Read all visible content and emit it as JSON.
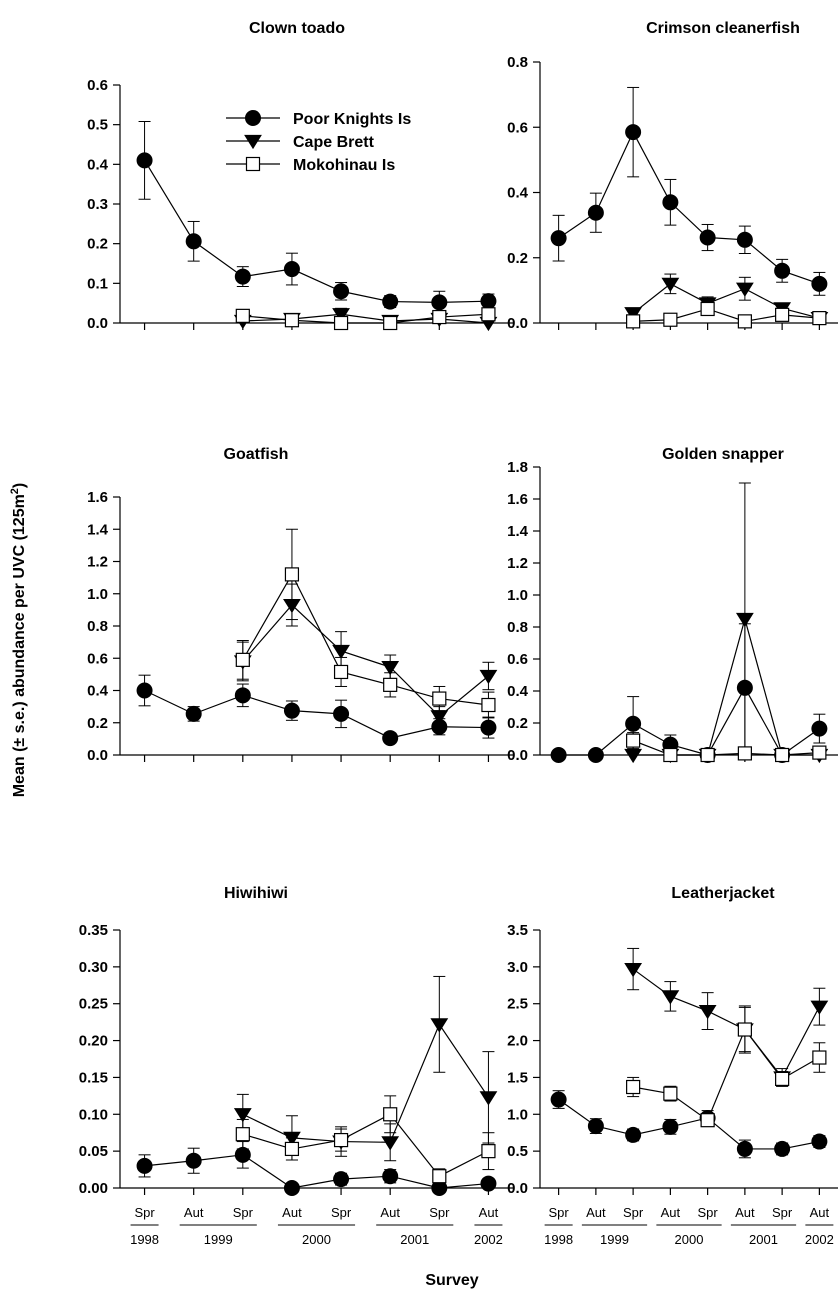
{
  "figure": {
    "ylabel_main": "Mean  (± s.e.) abundance per UVC (125m",
    "ylabel_sup": "2",
    "ylabel_end": ")",
    "xlabel": "Survey"
  },
  "x_axis": {
    "categories": [
      "Spr",
      "Aut",
      "Spr",
      "Aut",
      "Spr",
      "Aut",
      "Spr",
      "Aut"
    ],
    "years": [
      "1998",
      "1999",
      "2000",
      "2001",
      "2002"
    ]
  },
  "legend": [
    {
      "name": "Poor Knights Is",
      "marker": "filled-circle"
    },
    {
      "name": "Cape Brett",
      "marker": "filled-triangle-down"
    },
    {
      "name": "Mokohinau Is",
      "marker": "open-square"
    }
  ],
  "chart_data": [
    {
      "type": "line",
      "title": "Clown toado",
      "ylim": [
        0,
        0.6
      ],
      "yticks": [
        "0.0",
        "0.1",
        "0.2",
        "0.3",
        "0.4",
        "0.5",
        "0.6"
      ],
      "series": [
        {
          "name": "Poor Knights Is",
          "values": [
            0.41,
            0.206,
            0.117,
            0.136,
            0.08,
            0.054,
            0.052,
            0.055
          ],
          "errors": [
            0.098,
            0.05,
            0.025,
            0.04,
            0.022,
            0.015,
            0.028,
            0.018
          ]
        },
        {
          "name": "Cape Brett",
          "values": [
            null,
            null,
            0.005,
            0.01,
            0.022,
            0.005,
            0.01,
            0.0
          ],
          "errors": [
            null,
            null,
            0.008,
            0.01,
            0.015,
            0.008,
            0.01,
            0.0
          ]
        },
        {
          "name": "Mokohinau Is",
          "values": [
            null,
            null,
            0.018,
            0.007,
            0.0,
            0.0,
            0.015,
            0.022
          ],
          "errors": [
            null,
            null,
            0.01,
            0.01,
            0.0,
            0.0,
            0.012,
            0.015
          ]
        }
      ]
    },
    {
      "type": "line",
      "title": "Crimson cleanerfish",
      "ylim": [
        0,
        0.8
      ],
      "yticks": [
        "0.0",
        "0.2",
        "0.4",
        "0.6",
        "0.8"
      ],
      "series": [
        {
          "name": "Poor Knights Is",
          "values": [
            0.26,
            0.338,
            0.585,
            0.37,
            0.262,
            0.255,
            0.16,
            0.12
          ],
          "errors": [
            0.07,
            0.06,
            0.137,
            0.07,
            0.04,
            0.042,
            0.035,
            0.035
          ]
        },
        {
          "name": "Cape Brett",
          "values": [
            null,
            null,
            0.03,
            0.12,
            0.06,
            0.105,
            0.045,
            0.015
          ],
          "errors": [
            null,
            null,
            0.012,
            0.03,
            0.02,
            0.035,
            0.015,
            0.01
          ]
        },
        {
          "name": "Mokohinau Is",
          "values": [
            null,
            null,
            0.005,
            0.01,
            0.043,
            0.005,
            0.025,
            0.015
          ],
          "errors": [
            null,
            null,
            0.008,
            0.01,
            0.015,
            0.008,
            0.012,
            0.01
          ]
        }
      ]
    },
    {
      "type": "line",
      "title": "Goatfish",
      "ylim": [
        0,
        1.6
      ],
      "yticks": [
        "0.0",
        "0.2",
        "0.4",
        "0.6",
        "0.8",
        "1.0",
        "1.2",
        "1.4",
        "1.6"
      ],
      "series": [
        {
          "name": "Poor Knights Is",
          "values": [
            0.4,
            0.255,
            0.37,
            0.275,
            0.255,
            0.105,
            0.175,
            0.17
          ],
          "errors": [
            0.095,
            0.045,
            0.07,
            0.06,
            0.085,
            0.03,
            0.05,
            0.065
          ]
        },
        {
          "name": "Cape Brett",
          "values": [
            null,
            null,
            0.58,
            0.93,
            0.645,
            0.545,
            0.24,
            0.49
          ],
          "errors": [
            null,
            null,
            0.12,
            0.13,
            0.12,
            0.075,
            0.06,
            0.085
          ]
        },
        {
          "name": "Mokohinau Is",
          "values": [
            null,
            null,
            0.59,
            1.12,
            0.515,
            0.435,
            0.35,
            0.31
          ],
          "errors": [
            null,
            null,
            0.12,
            0.28,
            0.09,
            0.075,
            0.075,
            0.08
          ]
        }
      ]
    },
    {
      "type": "line",
      "title": "Golden snapper",
      "ylim": [
        0,
        1.8
      ],
      "yticks": [
        "0.0",
        "0.2",
        "0.4",
        "0.6",
        "0.8",
        "1.0",
        "1.2",
        "1.4",
        "1.6",
        "1.8"
      ],
      "series": [
        {
          "name": "Poor Knights Is",
          "values": [
            0.0,
            0.0,
            0.195,
            0.065,
            0.0,
            0.42,
            0.0,
            0.165
          ],
          "errors": [
            0.0,
            0.0,
            0.17,
            0.06,
            0.0,
            0.4,
            0.0,
            0.09
          ]
        },
        {
          "name": "Cape Brett",
          "values": [
            null,
            null,
            0.0,
            0.0,
            0.0,
            0.85,
            0.0,
            0.0
          ],
          "errors": [
            null,
            null,
            0.0,
            0.0,
            0.0,
            0.85,
            0.0,
            0.0
          ]
        },
        {
          "name": "Mokohinau Is",
          "values": [
            null,
            null,
            0.09,
            0.0,
            0.0,
            0.01,
            0.0,
            0.015
          ],
          "errors": [
            null,
            null,
            0.05,
            0.01,
            0.0,
            0.02,
            0.0,
            0.02
          ]
        }
      ]
    },
    {
      "type": "line",
      "title": "Hiwihiwi",
      "ylim": [
        0,
        0.35
      ],
      "yticks": [
        "0.00",
        "0.05",
        "0.10",
        "0.15",
        "0.20",
        "0.25",
        "0.30",
        "0.35"
      ],
      "series": [
        {
          "name": "Poor Knights Is",
          "values": [
            0.03,
            0.037,
            0.045,
            0.0,
            0.012,
            0.016,
            0.0,
            0.006
          ],
          "errors": [
            0.015,
            0.017,
            0.018,
            0.0,
            0.008,
            0.009,
            0.0,
            0.006
          ]
        },
        {
          "name": "Cape Brett",
          "values": [
            null,
            null,
            0.1,
            0.068,
            0.063,
            0.062,
            0.222,
            0.123
          ],
          "errors": [
            null,
            null,
            0.027,
            0.03,
            0.02,
            0.025,
            0.065,
            0.062
          ]
        },
        {
          "name": "Mokohinau Is",
          "values": [
            null,
            null,
            0.073,
            0.053,
            0.065,
            0.1,
            0.016,
            0.05
          ],
          "errors": [
            null,
            null,
            0.02,
            0.015,
            0.015,
            0.025,
            0.01,
            0.025
          ]
        }
      ]
    },
    {
      "type": "line",
      "title": "Leatherjacket",
      "ylim": [
        0,
        3.5
      ],
      "yticks": [
        "0.0",
        "0.5",
        "1.0",
        "1.5",
        "2.0",
        "2.5",
        "3.0",
        "3.5"
      ],
      "series": [
        {
          "name": "Poor Knights Is",
          "values": [
            1.2,
            0.84,
            0.72,
            0.83,
            0.95,
            0.53,
            0.53,
            0.63
          ],
          "errors": [
            0.12,
            0.1,
            0.08,
            0.1,
            0.1,
            0.12,
            0.08,
            0.08
          ]
        },
        {
          "name": "Cape Brett",
          "values": [
            null,
            null,
            2.97,
            2.6,
            2.4,
            2.15,
            1.5,
            2.46
          ],
          "errors": [
            null,
            null,
            0.28,
            0.2,
            0.25,
            0.32,
            0.12,
            0.25
          ]
        },
        {
          "name": "Mokohinau Is",
          "values": [
            null,
            null,
            1.37,
            1.28,
            0.92,
            2.15,
            1.48,
            1.77
          ],
          "errors": [
            null,
            null,
            0.13,
            0.1,
            0.08,
            0.3,
            0.1,
            0.2
          ]
        }
      ]
    }
  ]
}
